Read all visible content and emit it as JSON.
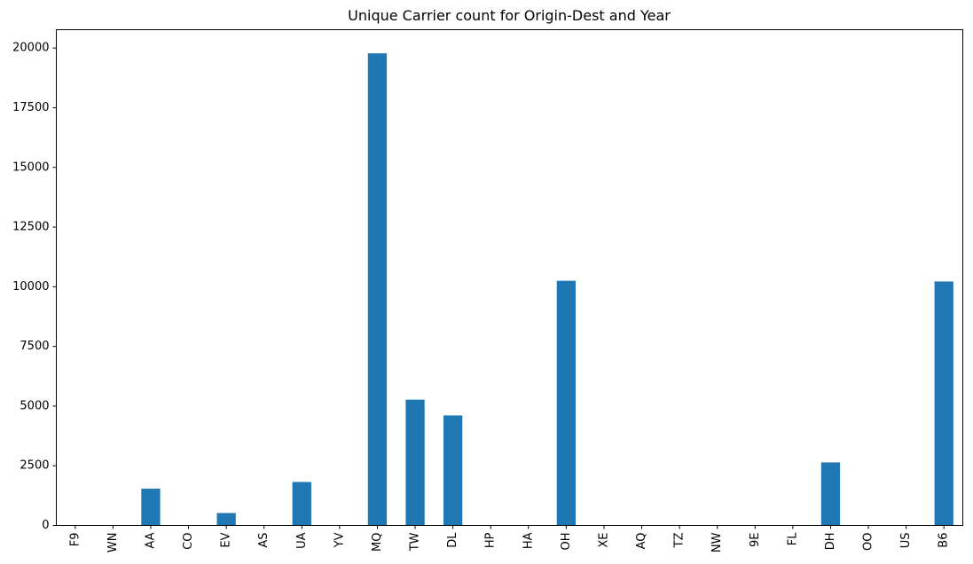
{
  "chart_data": {
    "type": "bar",
    "title": "Unique Carrier count for Origin-Dest and Year",
    "xlabel": "",
    "ylabel": "",
    "categories": [
      "F9",
      "WN",
      "AA",
      "CO",
      "EV",
      "AS",
      "UA",
      "YV",
      "MQ",
      "TW",
      "DL",
      "HP",
      "HA",
      "OH",
      "XE",
      "AQ",
      "TZ",
      "NW",
      "9E",
      "FL",
      "DH",
      "OO",
      "US",
      "B6"
    ],
    "values": [
      0,
      0,
      1540,
      0,
      520,
      0,
      1820,
      0,
      19780,
      5270,
      4610,
      0,
      0,
      10250,
      0,
      0,
      0,
      0,
      0,
      0,
      2640,
      0,
      0,
      10220
    ],
    "yticks": [
      0,
      2500,
      5000,
      7500,
      10000,
      12500,
      15000,
      17500,
      20000
    ],
    "ylim": [
      0,
      20769
    ],
    "bar_color": "#1f77b4",
    "grid": false,
    "legend": "none"
  }
}
